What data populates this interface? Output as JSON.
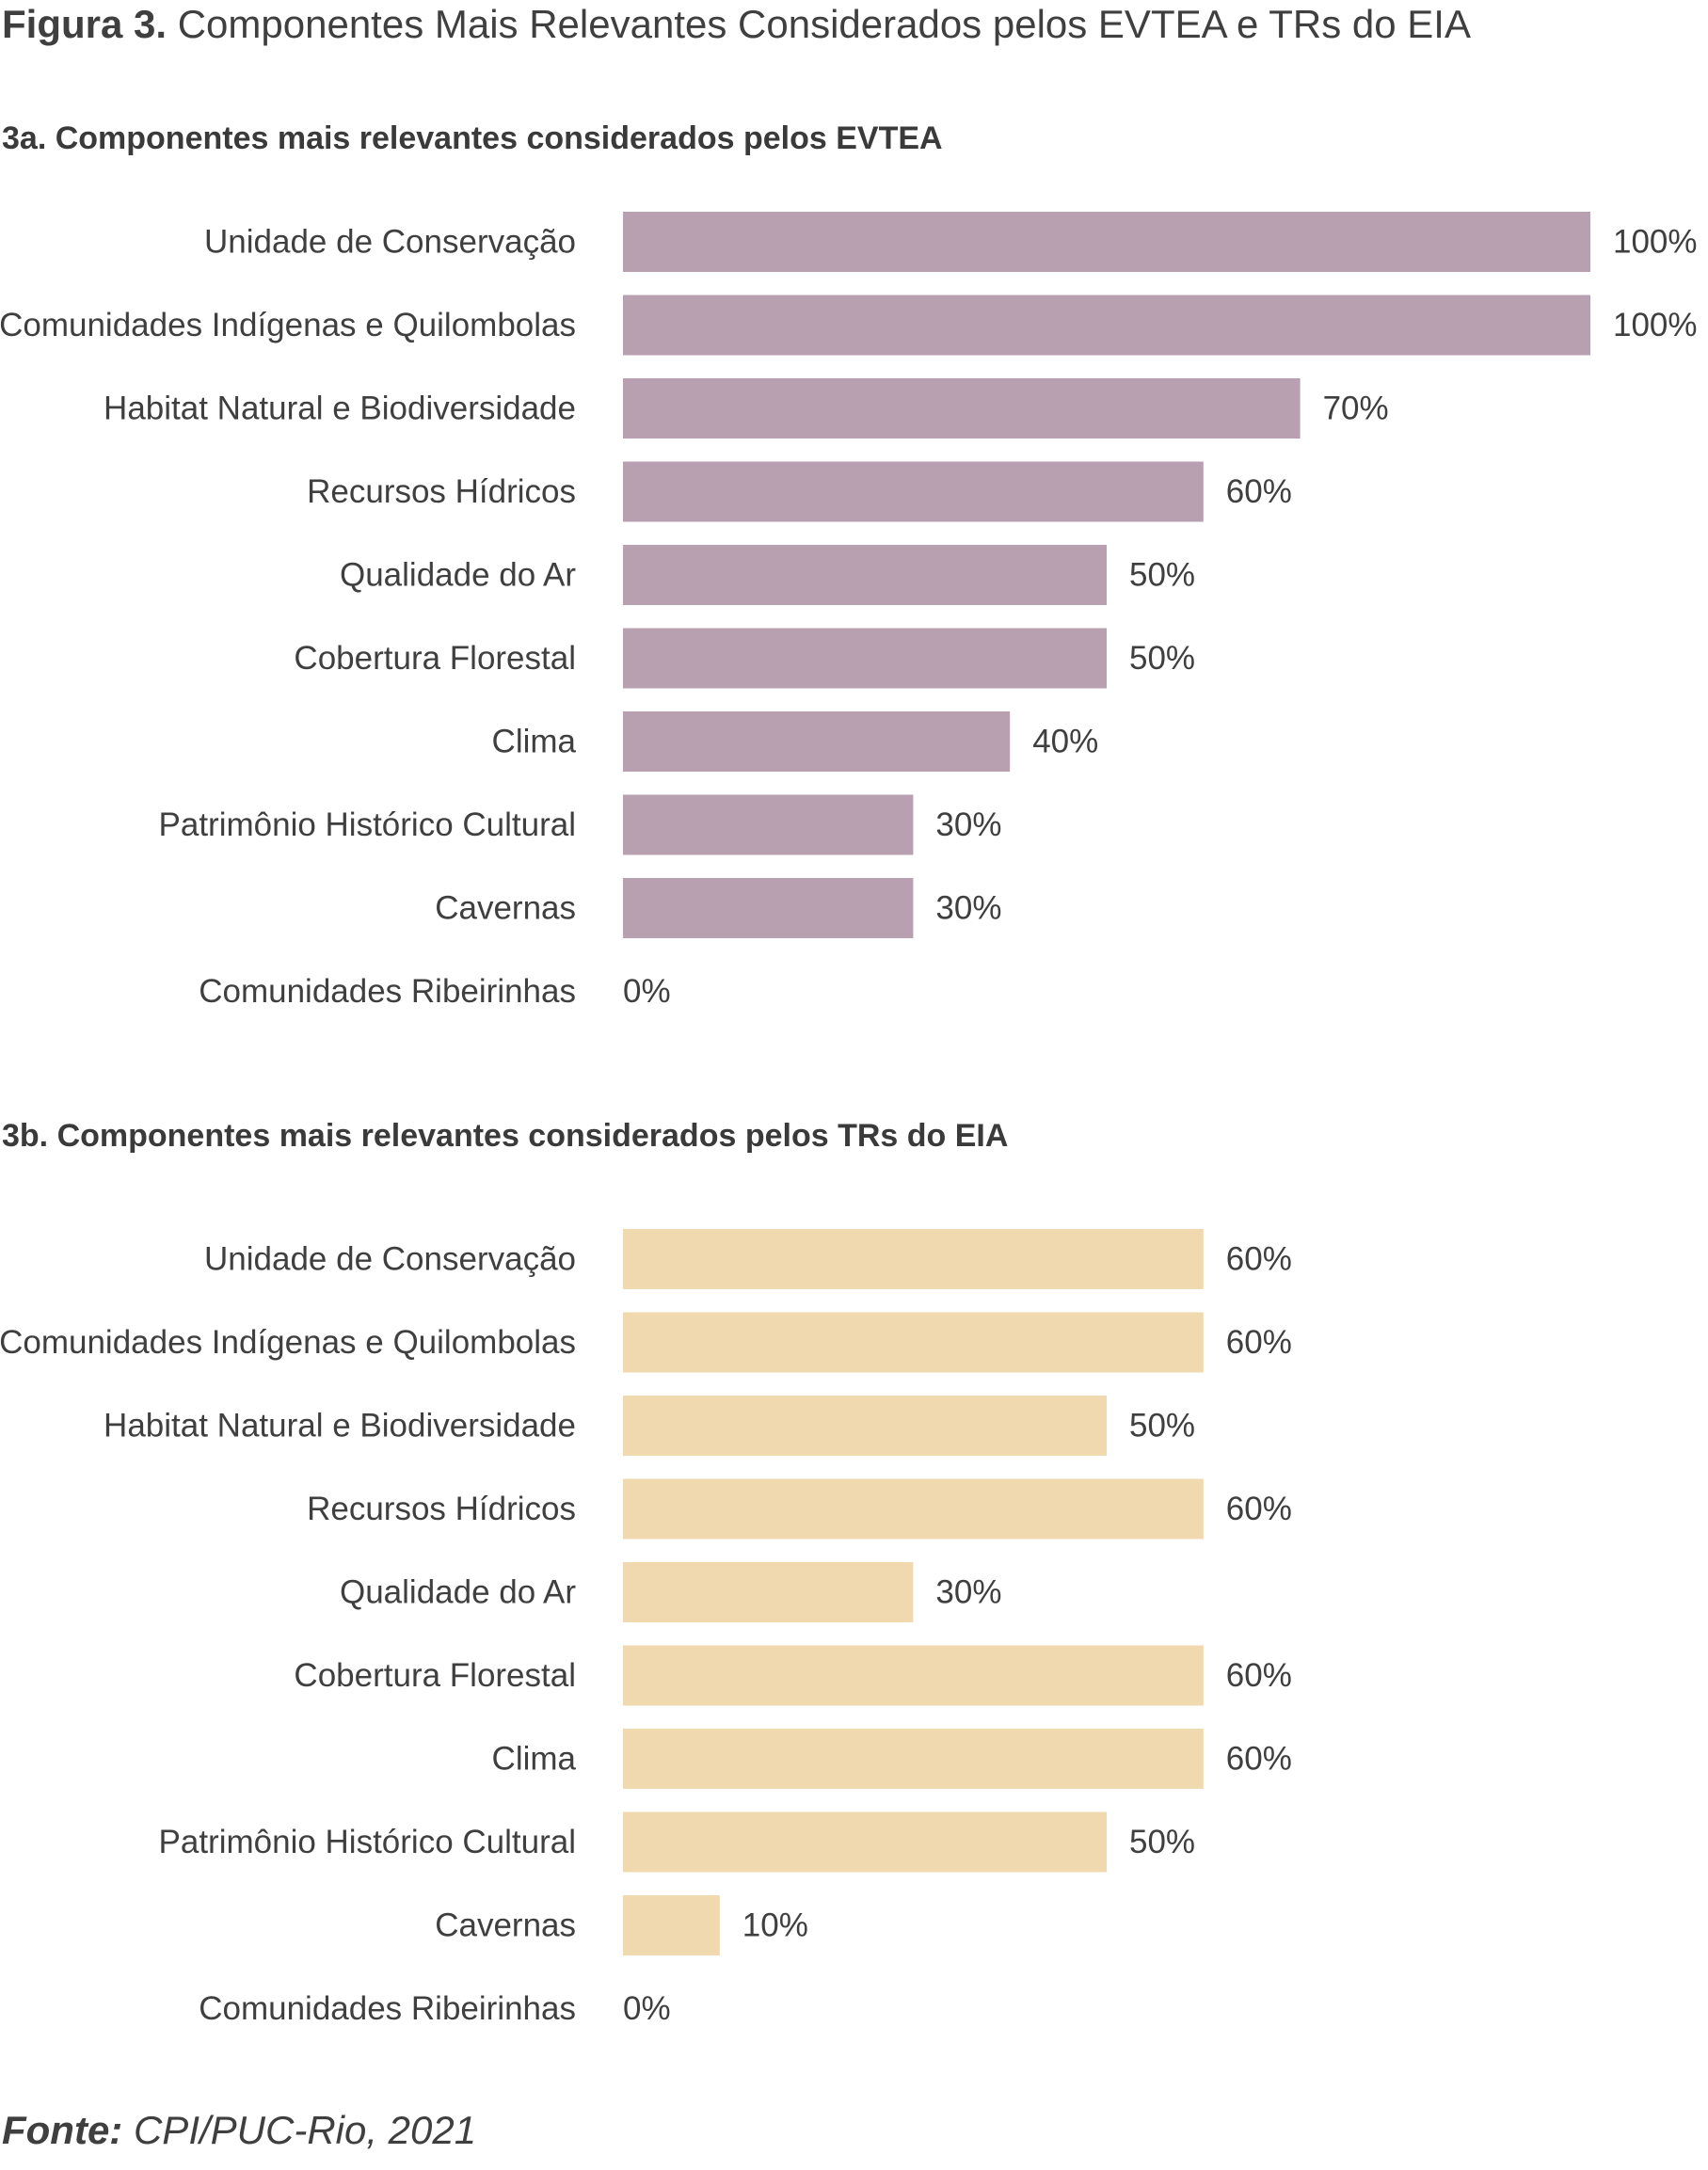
{
  "figure": {
    "label": "Figura 3.",
    "title": "Componentes Mais Relevantes Considerados pelos EVTEA e TRs do EIA"
  },
  "source": {
    "label": "Fonte:",
    "text": "CPI/PUC-Rio, 2021"
  },
  "chart_data": [
    {
      "type": "bar",
      "orientation": "horizontal",
      "title": "3a. Componentes mais relevantes considerados pelos EVTEA",
      "categories": [
        "Unidade de Conservação",
        "Comunidades Indígenas e Quilombolas",
        "Habitat Natural e Biodiversidade",
        "Recursos Hídricos",
        "Qualidade do Ar",
        "Cobertura Florestal",
        "Clima",
        "Patrimônio Histórico Cultural",
        "Cavernas",
        "Comunidades Ribeirinhas"
      ],
      "values": [
        100,
        100,
        70,
        60,
        50,
        50,
        40,
        30,
        30,
        0
      ],
      "value_labels": [
        "100%",
        "100%",
        "70%",
        "60%",
        "50%",
        "50%",
        "40%",
        "30%",
        "30%",
        "0%"
      ],
      "unit": "%",
      "xlim": [
        0,
        100
      ],
      "grid": false,
      "bar_color": "#b8a0b1"
    },
    {
      "type": "bar",
      "orientation": "horizontal",
      "title": "3b. Componentes mais relevantes considerados pelos TRs do EIA",
      "categories": [
        "Unidade de Conservação",
        "Comunidades Indígenas e Quilombolas",
        "Habitat Natural e Biodiversidade",
        "Recursos Hídricos",
        "Qualidade do Ar",
        "Cobertura Florestal",
        "Clima",
        "Patrimônio Histórico Cultural",
        "Cavernas",
        "Comunidades Ribeirinhas"
      ],
      "values": [
        60,
        60,
        50,
        60,
        30,
        60,
        60,
        50,
        10,
        0
      ],
      "value_labels": [
        "60%",
        "60%",
        "50%",
        "60%",
        "30%",
        "60%",
        "60%",
        "50%",
        "10%",
        "0%"
      ],
      "unit": "%",
      "xlim": [
        0,
        100
      ],
      "grid": false,
      "bar_color": "#f0d9ae"
    }
  ]
}
